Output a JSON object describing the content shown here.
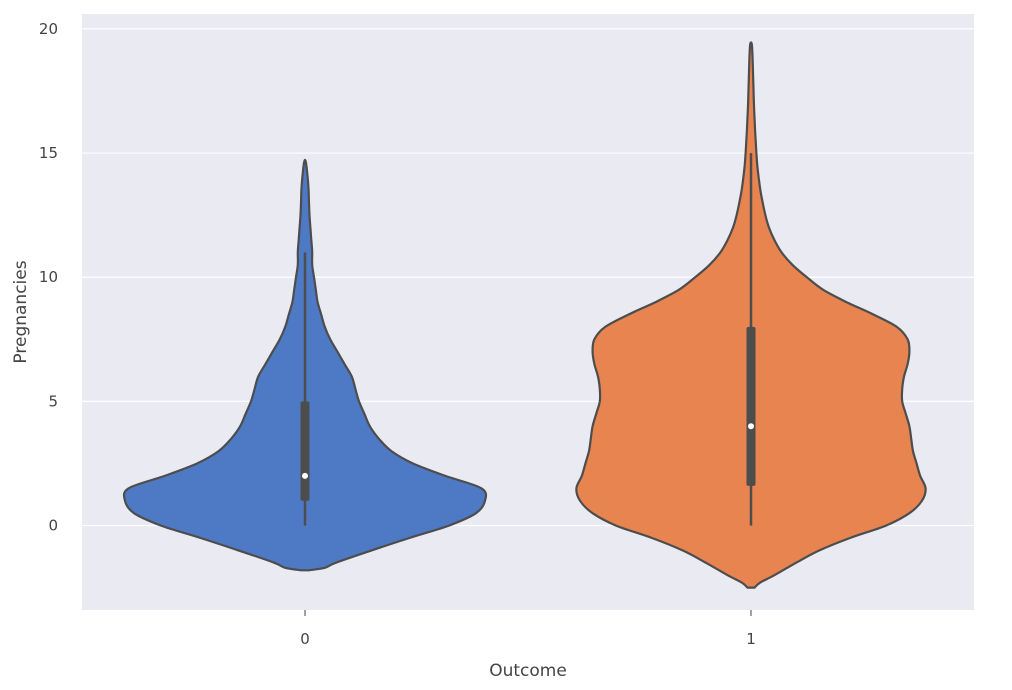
{
  "chart_data": {
    "type": "violin",
    "title": "",
    "xlabel": "Outcome",
    "ylabel": "Pregnancies",
    "categories": [
      "0",
      "1"
    ],
    "ylim": [
      -3.4,
      20.6
    ],
    "yticks": [
      0,
      5,
      10,
      15,
      20
    ],
    "ytick_labels": [
      "0",
      "5",
      "10",
      "15",
      "20"
    ],
    "grid": true,
    "legend": "none",
    "colors": {
      "background": "#eaeaf2",
      "grid": "#ffffff",
      "outline": "#4d4d4d",
      "box": "#4d4d4d",
      "median": "#ffffff",
      "violins": [
        "#4e79c5",
        "#e8844f"
      ]
    },
    "violins": [
      {
        "category": "0",
        "box": {
          "whisker_low": 0,
          "q1": 1,
          "median": 2,
          "q3": 5,
          "whisker_high": 11
        },
        "profile": [
          [
            -1.8,
            0.02
          ],
          [
            -1.7,
            0.11
          ],
          [
            -1.5,
            0.17
          ],
          [
            -1.0,
            0.37
          ],
          [
            -0.5,
            0.58
          ],
          [
            0.0,
            0.8
          ],
          [
            0.5,
            0.95
          ],
          [
            1.0,
            1.0
          ],
          [
            1.5,
            0.98
          ],
          [
            2.0,
            0.78
          ],
          [
            2.5,
            0.6
          ],
          [
            3.0,
            0.48
          ],
          [
            3.5,
            0.41
          ],
          [
            4.0,
            0.36
          ],
          [
            4.5,
            0.33
          ],
          [
            5.0,
            0.3
          ],
          [
            5.5,
            0.28
          ],
          [
            6.0,
            0.26
          ],
          [
            6.5,
            0.22
          ],
          [
            7.0,
            0.18
          ],
          [
            7.5,
            0.14
          ],
          [
            8.0,
            0.11
          ],
          [
            8.5,
            0.09
          ],
          [
            9.0,
            0.07
          ],
          [
            9.5,
            0.06
          ],
          [
            10.0,
            0.05
          ],
          [
            10.5,
            0.04
          ],
          [
            11.0,
            0.04
          ],
          [
            11.5,
            0.035
          ],
          [
            12.0,
            0.03
          ],
          [
            12.5,
            0.025
          ],
          [
            13.0,
            0.022
          ],
          [
            13.5,
            0.02
          ],
          [
            14.0,
            0.015
          ],
          [
            14.5,
            0.008
          ],
          [
            14.7,
            0.002
          ]
        ]
      },
      {
        "category": "1",
        "box": {
          "whisker_low": 0,
          "q1": 1.6,
          "median": 4,
          "q3": 8,
          "whisker_high": 15
        },
        "profile": [
          [
            -2.5,
            0.02
          ],
          [
            -2.3,
            0.05
          ],
          [
            -2.0,
            0.13
          ],
          [
            -1.5,
            0.25
          ],
          [
            -1.0,
            0.38
          ],
          [
            -0.5,
            0.55
          ],
          [
            0.0,
            0.75
          ],
          [
            0.5,
            0.88
          ],
          [
            1.0,
            0.95
          ],
          [
            1.5,
            0.97
          ],
          [
            2.0,
            0.94
          ],
          [
            2.5,
            0.92
          ],
          [
            3.0,
            0.9
          ],
          [
            3.5,
            0.89
          ],
          [
            4.0,
            0.88
          ],
          [
            4.5,
            0.86
          ],
          [
            5.0,
            0.84
          ],
          [
            5.5,
            0.84
          ],
          [
            6.0,
            0.85
          ],
          [
            6.5,
            0.87
          ],
          [
            7.0,
            0.88
          ],
          [
            7.5,
            0.87
          ],
          [
            8.0,
            0.81
          ],
          [
            8.5,
            0.68
          ],
          [
            9.0,
            0.53
          ],
          [
            9.5,
            0.4
          ],
          [
            10.0,
            0.31
          ],
          [
            10.5,
            0.23
          ],
          [
            11.0,
            0.17
          ],
          [
            11.5,
            0.13
          ],
          [
            12.0,
            0.1
          ],
          [
            12.5,
            0.08
          ],
          [
            13.0,
            0.065
          ],
          [
            13.5,
            0.052
          ],
          [
            14.0,
            0.043
          ],
          [
            14.5,
            0.035
          ],
          [
            15.0,
            0.03
          ],
          [
            15.5,
            0.026
          ],
          [
            16.0,
            0.022
          ],
          [
            17.0,
            0.016
          ],
          [
            18.0,
            0.012
          ],
          [
            19.0,
            0.008
          ],
          [
            19.4,
            0.004
          ]
        ]
      }
    ]
  }
}
